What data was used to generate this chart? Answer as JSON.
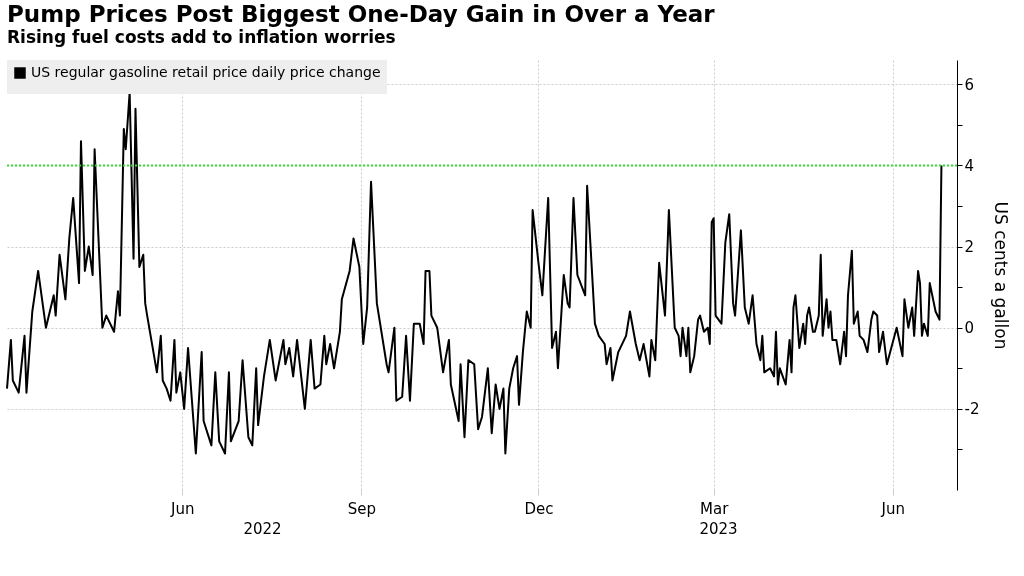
{
  "chart_data": {
    "type": "line",
    "title": "Pump Prices Post Biggest One-Day Gain in Over a Year",
    "subtitle": "Rising fuel costs add to inflation worries",
    "ylabel": "US cents a gallon",
    "annotations": [
      "2022",
      "2023"
    ],
    "x": [
      "2022-03-03",
      "2022-03-05",
      "2022-03-06",
      "2022-03-09",
      "2022-03-12",
      "2022-03-13",
      "2022-03-16",
      "2022-03-19",
      "2022-03-23",
      "2022-03-27",
      "2022-03-28",
      "2022-03-30",
      "2022-04-02",
      "2022-04-04",
      "2022-04-06",
      "2022-04-09",
      "2022-04-10",
      "2022-04-12",
      "2022-04-14",
      "2022-04-16",
      "2022-04-17",
      "2022-04-21",
      "2022-04-23",
      "2022-04-27",
      "2022-04-29",
      "2022-04-30",
      "2022-05-02",
      "2022-05-03",
      "2022-05-05",
      "2022-05-07",
      "2022-05-08",
      "2022-05-10",
      "2022-05-12",
      "2022-05-13",
      "2022-05-14",
      "2022-05-19",
      "2022-05-21",
      "2022-05-22",
      "2022-05-24",
      "2022-05-26",
      "2022-05-28",
      "2022-05-29",
      "2022-05-31",
      "2022-06-02",
      "2022-06-04",
      "2022-06-08",
      "2022-06-11",
      "2022-06-12",
      "2022-06-16",
      "2022-06-18",
      "2022-06-20",
      "2022-06-23",
      "2022-06-25",
      "2022-06-26",
      "2022-06-30",
      "2022-07-02",
      "2022-07-05",
      "2022-07-07",
      "2022-07-09",
      "2022-07-10",
      "2022-07-13",
      "2022-07-16",
      "2022-07-19",
      "2022-07-23",
      "2022-07-24",
      "2022-07-26",
      "2022-07-28",
      "2022-07-30",
      "2022-08-03",
      "2022-08-06",
      "2022-08-08",
      "2022-08-11",
      "2022-08-13",
      "2022-08-14",
      "2022-08-16",
      "2022-08-18",
      "2022-08-21",
      "2022-08-22",
      "2022-08-26",
      "2022-08-28",
      "2022-08-31",
      "2022-09-02",
      "2022-09-04",
      "2022-09-06",
      "2022-09-09",
      "2022-09-14",
      "2022-09-15",
      "2022-09-18",
      "2022-09-19",
      "2022-09-22",
      "2022-09-24",
      "2022-09-26",
      "2022-09-28",
      "2022-10-01",
      "2022-10-03",
      "2022-10-04",
      "2022-10-06",
      "2022-10-07",
      "2022-10-10",
      "2022-10-13",
      "2022-10-16",
      "2022-10-17",
      "2022-10-21",
      "2022-10-22",
      "2022-10-24",
      "2022-10-26",
      "2022-10-29",
      "2022-10-31",
      "2022-11-02",
      "2022-11-05",
      "2022-11-07",
      "2022-11-09",
      "2022-11-11",
      "2022-11-13",
      "2022-11-14",
      "2022-11-16",
      "2022-11-18",
      "2022-11-20",
      "2022-11-21",
      "2022-11-23",
      "2022-11-25",
      "2022-11-27",
      "2022-11-28",
      "2022-12-01",
      "2022-12-03",
      "2022-12-06",
      "2022-12-08",
      "2022-12-10",
      "2022-12-11",
      "2022-12-14",
      "2022-12-16",
      "2022-12-17",
      "2022-12-19",
      "2022-12-21",
      "2022-12-25",
      "2022-12-26",
      "2022-12-30",
      "2023-01-01",
      "2023-01-04",
      "2023-01-05",
      "2023-01-07",
      "2023-01-08",
      "2023-01-11",
      "2023-01-15",
      "2023-01-17",
      "2023-01-20",
      "2023-01-22",
      "2023-01-24",
      "2023-01-27",
      "2023-01-28",
      "2023-01-30",
      "2023-02-01",
      "2023-02-04",
      "2023-02-06",
      "2023-02-09",
      "2023-02-11",
      "2023-02-12",
      "2023-02-13",
      "2023-02-15",
      "2023-02-16",
      "2023-02-17",
      "2023-02-19",
      "2023-02-21",
      "2023-02-22",
      "2023-02-24",
      "2023-02-26",
      "2023-02-27",
      "2023-02-28",
      "2023-03-01",
      "2023-03-02",
      "2023-03-05",
      "2023-03-07",
      "2023-03-09",
      "2023-03-11",
      "2023-03-12",
      "2023-03-15",
      "2023-03-17",
      "2023-03-18",
      "2023-03-19",
      "2023-03-21",
      "2023-03-23",
      "2023-03-25",
      "2023-03-26",
      "2023-03-27",
      "2023-03-30",
      "2023-04-01",
      "2023-04-02",
      "2023-04-03",
      "2023-04-04",
      "2023-04-07",
      "2023-04-09",
      "2023-04-10",
      "2023-04-11",
      "2023-04-12",
      "2023-04-14",
      "2023-04-16",
      "2023-04-17",
      "2023-04-18",
      "2023-04-19",
      "2023-04-21",
      "2023-04-22",
      "2023-04-24",
      "2023-04-25",
      "2023-04-26",
      "2023-04-28",
      "2023-04-29",
      "2023-04-30",
      "2023-05-01",
      "2023-05-03",
      "2023-05-05",
      "2023-05-07",
      "2023-05-08",
      "2023-05-09",
      "2023-05-11",
      "2023-05-12",
      "2023-05-14",
      "2023-05-15",
      "2023-05-17",
      "2023-05-19",
      "2023-05-21",
      "2023-05-22",
      "2023-05-24",
      "2023-05-25",
      "2023-05-27",
      "2023-05-29",
      "2023-06-03",
      "2023-06-06",
      "2023-06-07",
      "2023-06-09",
      "2023-06-11",
      "2023-06-12",
      "2023-06-14",
      "2023-06-15",
      "2023-06-16",
      "2023-06-17",
      "2023-06-19",
      "2023-06-20",
      "2023-06-23",
      "2023-06-25",
      "2023-06-26"
    ],
    "series": [
      {
        "name": "US regular gasoline retail price daily price change",
        "color": "#000000",
        "values": [
          -1.5,
          -0.3,
          -1.3,
          -1.6,
          -0.2,
          -1.6,
          0.4,
          1.4,
          0.0,
          0.8,
          0.3,
          1.8,
          0.7,
          2.2,
          3.2,
          1.1,
          4.6,
          1.4,
          2.0,
          1.3,
          4.4,
          0.0,
          0.3,
          -0.1,
          0.9,
          0.3,
          4.9,
          4.4,
          5.8,
          1.7,
          5.4,
          1.5,
          1.8,
          0.6,
          0.3,
          -1.1,
          -0.2,
          -1.3,
          -1.5,
          -1.8,
          -0.3,
          -1.6,
          -1.1,
          -2.0,
          -0.5,
          -3.1,
          -0.6,
          -2.3,
          -2.9,
          -1.1,
          -2.8,
          -3.1,
          -1.1,
          -2.8,
          -2.3,
          -0.8,
          -2.7,
          -2.9,
          -1.0,
          -2.4,
          -1.2,
          -0.3,
          -1.3,
          -0.3,
          -0.9,
          -0.5,
          -1.2,
          -0.3,
          -2.0,
          -0.3,
          -1.5,
          -1.4,
          -0.2,
          -0.9,
          -0.4,
          -1.0,
          -0.1,
          0.7,
          1.4,
          2.2,
          1.5,
          -0.4,
          0.5,
          3.6,
          0.6,
          -0.9,
          -1.1,
          0.0,
          -1.8,
          -1.7,
          -0.2,
          -1.8,
          0.1,
          0.1,
          -0.4,
          1.4,
          1.4,
          0.3,
          0.0,
          -1.1,
          -0.3,
          -1.4,
          -2.3,
          -0.9,
          -2.7,
          -0.8,
          -0.9,
          -2.5,
          -2.2,
          -1.0,
          -2.6,
          -1.4,
          -2.0,
          -1.5,
          -3.1,
          -1.5,
          -1.0,
          -0.7,
          -1.9,
          -0.6,
          0.4,
          0.0,
          2.9,
          1.6,
          0.8,
          3.2,
          -0.5,
          -0.1,
          -1.0,
          1.3,
          0.6,
          0.5,
          3.2,
          1.3,
          0.8,
          3.5,
          0.1,
          -0.2,
          -0.4,
          -0.9,
          -0.5,
          -1.3,
          -0.6,
          -0.2,
          0.4,
          -0.4,
          -0.8,
          -0.4,
          -1.2,
          -0.3,
          -0.8,
          1.6,
          0.3,
          2.9,
          0.0,
          -0.2,
          -0.7,
          0.0,
          -0.7,
          0.0,
          -1.1,
          -0.7,
          0.2,
          0.3,
          -0.1,
          0.0,
          -0.4,
          2.6,
          2.7,
          0.3,
          0.1,
          2.1,
          2.8,
          0.6,
          0.3,
          2.4,
          0.5,
          0.3,
          0.1,
          0.8,
          -0.4,
          -0.8,
          -0.2,
          -1.1,
          -1.0,
          -1.2,
          -0.1,
          -1.4,
          -1.0,
          -1.4,
          -0.3,
          -1.1,
          0.5,
          0.8,
          -0.5,
          0.1,
          -0.4,
          0.3,
          0.5,
          -0.1,
          -0.1,
          0.3,
          1.8,
          -0.2,
          0.7,
          0.0,
          0.4,
          -0.3,
          -0.3,
          -0.9,
          -0.1,
          -0.7,
          0.8,
          1.9,
          0.1,
          0.4,
          -0.2,
          -0.3,
          -0.6,
          0.2,
          0.4,
          0.3,
          -0.6,
          -0.1,
          -0.9,
          0.0,
          -0.7,
          0.7,
          0.0,
          0.5,
          -0.2,
          1.4,
          1.1,
          -0.2,
          0.1,
          -0.2,
          1.1,
          0.4,
          0.2,
          4
        ]
      }
    ],
    "xlim": [
      "2022-03-03",
      "2023-07-04"
    ],
    "xticks": [
      {
        "value": "2022-06-01",
        "label": "Jun"
      },
      {
        "value": "2022-09-01",
        "label": "Sep"
      },
      {
        "value": "2022-12-01",
        "label": "Dec"
      },
      {
        "value": "2023-03-01",
        "label": "Mar"
      },
      {
        "value": "2023-06-01",
        "label": "Jun"
      }
    ],
    "ylim": [
      -4,
      6.6
    ],
    "yticks": [
      6,
      {
        "value": 5,
        "label": null
      },
      4,
      {
        "value": 3,
        "label": null
      },
      2,
      {
        "value": 1,
        "label": null
      },
      0,
      {
        "value": -1,
        "label": null
      },
      -2,
      {
        "value": -3,
        "label": null
      }
    ],
    "ref_lines": [
      {
        "axis": "y",
        "value": 4,
        "color": "#33dd33",
        "line_style": "dotted"
      }
    ],
    "grid": true,
    "legend": "top left"
  }
}
